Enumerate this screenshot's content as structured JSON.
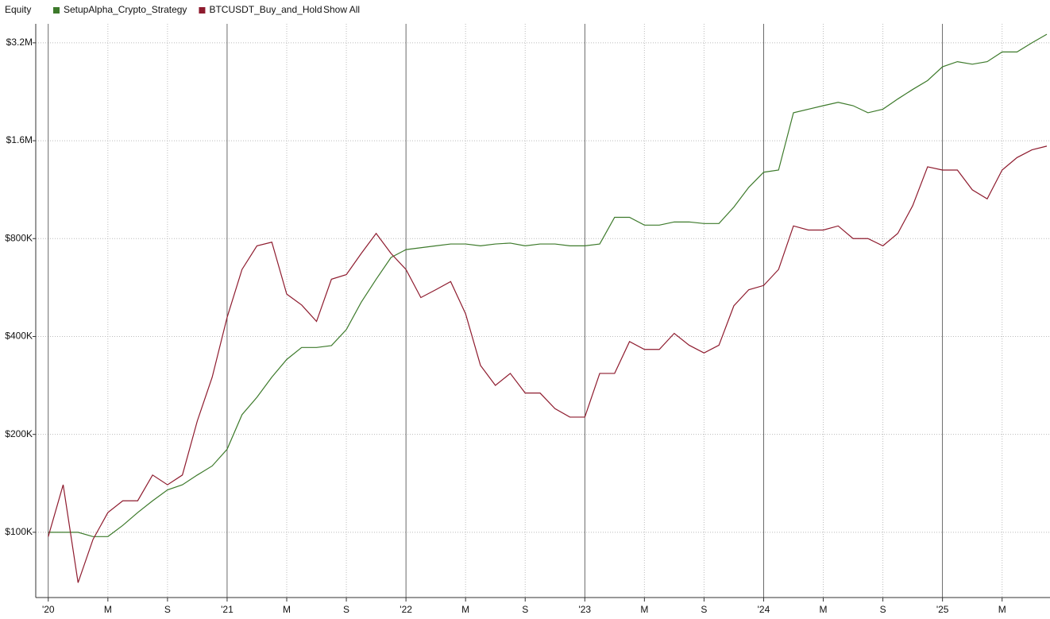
{
  "chart_data": {
    "type": "line",
    "title": "Equity",
    "button": "Show All",
    "log_scale": true,
    "grid": true,
    "x": [
      "2020-01",
      "2020-02",
      "2020-03",
      "2020-04",
      "2020-05",
      "2020-06",
      "2020-07",
      "2020-08",
      "2020-09",
      "2020-10",
      "2020-11",
      "2020-12",
      "2021-01",
      "2021-02",
      "2021-03",
      "2021-04",
      "2021-05",
      "2021-06",
      "2021-07",
      "2021-08",
      "2021-09",
      "2021-10",
      "2021-11",
      "2021-12",
      "2022-01",
      "2022-02",
      "2022-03",
      "2022-04",
      "2022-05",
      "2022-06",
      "2022-07",
      "2022-08",
      "2022-09",
      "2022-10",
      "2022-11",
      "2022-12",
      "2023-01",
      "2023-02",
      "2023-03",
      "2023-04",
      "2023-05",
      "2023-06",
      "2023-07",
      "2023-08",
      "2023-09",
      "2023-10",
      "2023-11",
      "2023-12",
      "2024-01",
      "2024-02",
      "2024-03",
      "2024-04",
      "2024-05",
      "2024-06",
      "2024-07",
      "2024-08",
      "2024-09",
      "2024-10",
      "2024-11",
      "2024-12",
      "2025-01",
      "2025-02",
      "2025-03",
      "2025-04",
      "2025-05",
      "2025-06",
      "2025-07",
      "2025-08"
    ],
    "series": [
      {
        "name": "SetupAlpha_Crypto_Strategy",
        "color": "#3d7a2b",
        "values": [
          100000,
          100000,
          100000,
          97000,
          97000,
          105000,
          115000,
          125000,
          135000,
          140000,
          150000,
          160000,
          180000,
          230000,
          260000,
          300000,
          340000,
          370000,
          370000,
          375000,
          420000,
          510000,
          600000,
          700000,
          740000,
          750000,
          760000,
          770000,
          770000,
          760000,
          770000,
          775000,
          760000,
          770000,
          770000,
          760000,
          760000,
          770000,
          930000,
          930000,
          880000,
          880000,
          900000,
          900000,
          890000,
          890000,
          1000000,
          1150000,
          1280000,
          1300000,
          1950000,
          2000000,
          2050000,
          2100000,
          2050000,
          1950000,
          2000000,
          2150000,
          2300000,
          2450000,
          2700000,
          2800000,
          2750000,
          2800000,
          3000000,
          3000000,
          3200000,
          3400000
        ]
      },
      {
        "name": "BTCUSDT_Buy_and_Hold",
        "color": "#8e1b2e",
        "values": [
          97000,
          140000,
          70000,
          95000,
          115000,
          125000,
          125000,
          150000,
          140000,
          150000,
          220000,
          300000,
          458000,
          643000,
          760000,
          780000,
          540000,
          500000,
          445000,
          600000,
          620000,
          720000,
          830000,
          720000,
          643000,
          527000,
          557000,
          590000,
          470000,
          326000,
          283000,
          308000,
          268000,
          268000,
          240000,
          226000,
          226000,
          308000,
          308000,
          386000,
          365000,
          365000,
          409000,
          376000,
          356000,
          376000,
          497000,
          557000,
          574000,
          643000,
          875000,
          850000,
          850000,
          875000,
          800000,
          800000,
          760000,
          830000,
          1010000,
          1330000,
          1300000,
          1300000,
          1130000,
          1060000,
          1300000,
          1420000,
          1500000,
          1540000
        ]
      }
    ],
    "xlim": [
      "2019-12",
      "2025-08"
    ],
    "xticks": [
      {
        "value": "2020-01",
        "label": "'20"
      },
      {
        "value": "2020-05",
        "label": "M"
      },
      {
        "value": "2020-09",
        "label": "S"
      },
      {
        "value": "2021-01",
        "label": "'21"
      },
      {
        "value": "2021-05",
        "label": "M"
      },
      {
        "value": "2021-09",
        "label": "S"
      },
      {
        "value": "2022-01",
        "label": "'22"
      },
      {
        "value": "2022-05",
        "label": "M"
      },
      {
        "value": "2022-09",
        "label": "S"
      },
      {
        "value": "2023-01",
        "label": "'23"
      },
      {
        "value": "2023-05",
        "label": "M"
      },
      {
        "value": "2023-09",
        "label": "S"
      },
      {
        "value": "2024-01",
        "label": "'24"
      },
      {
        "value": "2024-05",
        "label": "M"
      },
      {
        "value": "2024-09",
        "label": "S"
      },
      {
        "value": "2025-01",
        "label": "'25"
      },
      {
        "value": "2025-05",
        "label": "M"
      }
    ],
    "ylim": [
      63000,
      3660000
    ],
    "yticks": [
      {
        "value": 100000,
        "label": "$100K"
      },
      {
        "value": 200000,
        "label": "$200K"
      },
      {
        "value": 400000,
        "label": "$400K"
      },
      {
        "value": 800000,
        "label": "$800K"
      },
      {
        "value": 1600000,
        "label": "$1.6M"
      },
      {
        "value": 3200000,
        "label": "$3.2M"
      }
    ]
  }
}
